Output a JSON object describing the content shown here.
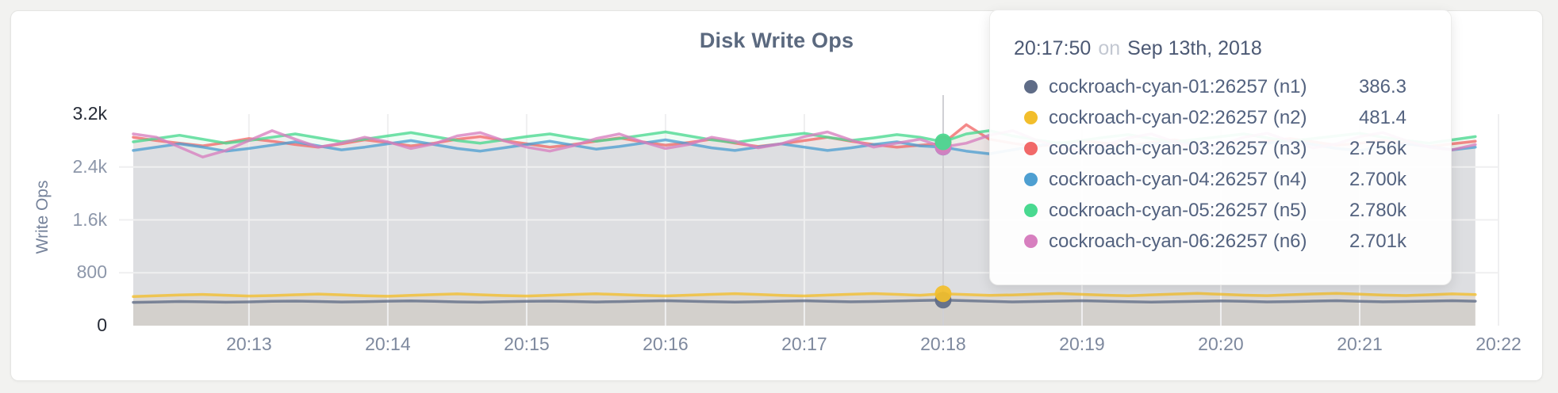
{
  "card": {
    "background": "#ffffff",
    "page_background": "#f2f2f0"
  },
  "tooltip": {
    "time": "20:17:50",
    "conjunction": "on",
    "date": "Sep 13th, 2018",
    "rows": [
      {
        "name": "cockroach-cyan-01:26257 (n1)",
        "value": "386.3",
        "color": "#5F6C87"
      },
      {
        "name": "cockroach-cyan-02:26257 (n2)",
        "value": "481.4",
        "color": "#F2BE2C"
      },
      {
        "name": "cockroach-cyan-03:26257 (n3)",
        "value": "2.756k",
        "color": "#F16969"
      },
      {
        "name": "cockroach-cyan-04:26257 (n4)",
        "value": "2.700k",
        "color": "#4E9FD1"
      },
      {
        "name": "cockroach-cyan-05:26257 (n5)",
        "value": "2.780k",
        "color": "#49D990"
      },
      {
        "name": "cockroach-cyan-06:26257 (n6)",
        "value": "2.701k",
        "color": "#D77FBF"
      }
    ]
  },
  "chart_data": {
    "type": "line",
    "title": "Disk Write Ops",
    "xlabel": "",
    "ylabel": "Write Ops",
    "ylim": [
      0,
      3200
    ],
    "grid": true,
    "legend_position": "tooltip",
    "y_ticks": [
      {
        "label": "3.2k",
        "value": 3200,
        "emphasis": true
      },
      {
        "label": "2.4k",
        "value": 2400,
        "emphasis": false
      },
      {
        "label": "1.6k",
        "value": 1600,
        "emphasis": false
      },
      {
        "label": "800",
        "value": 800,
        "emphasis": false
      },
      {
        "label": "0",
        "value": 0,
        "emphasis": true
      }
    ],
    "x_ticks": [
      {
        "label": "20:13",
        "offset_s": 50
      },
      {
        "label": "20:14",
        "offset_s": 110
      },
      {
        "label": "20:15",
        "offset_s": 170
      },
      {
        "label": "20:16",
        "offset_s": 230
      },
      {
        "label": "20:17",
        "offset_s": 290
      },
      {
        "label": "20:18",
        "offset_s": 350
      },
      {
        "label": "20:19",
        "offset_s": 410
      },
      {
        "label": "20:20",
        "offset_s": 470
      },
      {
        "label": "20:21",
        "offset_s": 530
      },
      {
        "label": "20:22",
        "offset_s": 590
      }
    ],
    "x_domain_s": [
      0,
      590
    ],
    "x_step_s": 10,
    "hover": {
      "index": 35,
      "time": "20:17:50",
      "date": "Sep 13th, 2018"
    },
    "series": [
      {
        "name": "cockroach-cyan-01:26257 (n1)",
        "color": "#5F6C87",
        "hover_label": "386.3",
        "values": [
          352,
          358,
          365,
          361,
          355,
          360,
          368,
          372,
          366,
          358,
          362,
          370,
          375,
          368,
          360,
          355,
          362,
          368,
          372,
          365,
          358,
          364,
          371,
          377,
          370,
          362,
          357,
          363,
          370,
          376,
          368,
          361,
          366,
          373,
          380,
          386.3,
          378,
          368,
          360,
          365,
          372,
          378,
          370,
          362,
          356,
          362,
          369,
          375,
          368,
          360,
          364,
          371,
          377,
          369,
          361,
          365,
          372,
          378,
          370
        ]
      },
      {
        "name": "cockroach-cyan-02:26257 (n2)",
        "color": "#F2BE2C",
        "hover_label": "481.4",
        "values": [
          440,
          452,
          465,
          472,
          460,
          448,
          455,
          468,
          478,
          466,
          452,
          445,
          458,
          470,
          480,
          468,
          455,
          448,
          460,
          472,
          482,
          470,
          458,
          450,
          462,
          474,
          484,
          472,
          458,
          450,
          463,
          475,
          485,
          473,
          460,
          481.4,
          470,
          458,
          465,
          477,
          487,
          474,
          461,
          453,
          466,
          478,
          488,
          475,
          462,
          454,
          467,
          479,
          489,
          476,
          463,
          455,
          468,
          480,
          470
        ]
      },
      {
        "name": "cockroach-cyan-03:26257 (n3)",
        "color": "#F16969",
        "hover_label": "2.756k",
        "values": [
          2850,
          2800,
          2760,
          2720,
          2770,
          2830,
          2790,
          2740,
          2700,
          2750,
          2810,
          2770,
          2720,
          2760,
          2820,
          2860,
          2800,
          2750,
          2700,
          2740,
          2790,
          2840,
          2780,
          2730,
          2770,
          2820,
          2760,
          2710,
          2750,
          2800,
          2850,
          2790,
          2740,
          2700,
          2730,
          2756,
          3040,
          2820,
          2760,
          2710,
          2750,
          2800,
          2760,
          2720,
          2770,
          2810,
          2750,
          2700,
          2740,
          2790,
          2830,
          2780,
          2730,
          2760,
          2800,
          2750,
          2710,
          2750,
          2790
        ]
      },
      {
        "name": "cockroach-cyan-04:26257 (n4)",
        "color": "#4E9FD1",
        "hover_label": "2.700k",
        "values": [
          2650,
          2700,
          2750,
          2700,
          2640,
          2680,
          2730,
          2780,
          2720,
          2660,
          2700,
          2750,
          2800,
          2740,
          2680,
          2640,
          2690,
          2740,
          2790,
          2730,
          2670,
          2710,
          2760,
          2810,
          2750,
          2690,
          2650,
          2700,
          2750,
          2700,
          2650,
          2690,
          2740,
          2780,
          2720,
          2700,
          2640,
          2600,
          2660,
          2720,
          2770,
          2710,
          2660,
          2700,
          2750,
          2790,
          2730,
          2670,
          2710,
          2760,
          2800,
          2740,
          2680,
          2650,
          2700,
          2750,
          2710,
          2660,
          2700
        ]
      },
      {
        "name": "cockroach-cyan-05:26257 (n5)",
        "color": "#49D990",
        "hover_label": "2.780k",
        "values": [
          2780,
          2830,
          2880,
          2820,
          2760,
          2800,
          2850,
          2900,
          2840,
          2780,
          2820,
          2870,
          2920,
          2860,
          2800,
          2760,
          2810,
          2860,
          2900,
          2840,
          2790,
          2830,
          2880,
          2930,
          2870,
          2810,
          2770,
          2820,
          2870,
          2910,
          2850,
          2800,
          2840,
          2890,
          2850,
          2780,
          2900,
          2950,
          2870,
          2810,
          2760,
          2800,
          2850,
          2890,
          2830,
          2780,
          2820,
          2860,
          2900,
          2840,
          2790,
          2830,
          2870,
          2910,
          2850,
          2800,
          2760,
          2810,
          2860
        ]
      },
      {
        "name": "cockroach-cyan-06:26257 (n6)",
        "color": "#D77FBF",
        "hover_label": "2.701k",
        "values": [
          2900,
          2850,
          2700,
          2550,
          2650,
          2800,
          2950,
          2820,
          2700,
          2760,
          2850,
          2780,
          2680,
          2750,
          2870,
          2920,
          2800,
          2700,
          2640,
          2720,
          2830,
          2900,
          2780,
          2680,
          2740,
          2850,
          2790,
          2690,
          2750,
          2860,
          2930,
          2810,
          2700,
          2760,
          2820,
          2701,
          2760,
          2880,
          2950,
          2810,
          2700,
          2650,
          2730,
          2840,
          2900,
          2780,
          2680,
          2740,
          2850,
          2910,
          2790,
          2690,
          2750,
          2860,
          2920,
          2800,
          2700,
          2660,
          2740
        ]
      }
    ]
  }
}
